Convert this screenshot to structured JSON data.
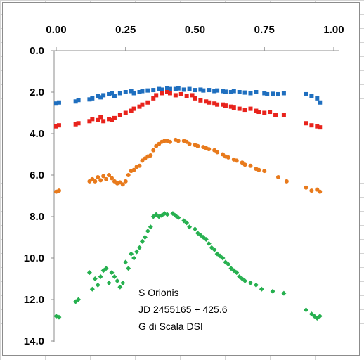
{
  "chart_data": {
    "type": "scatter",
    "xlim": [
      0,
      1
    ],
    "ylim": [
      0,
      14
    ],
    "y_reversed": true,
    "x_axis_position": "top",
    "grid": "none",
    "legend": "none",
    "x_ticks": [
      "0.00",
      "0.25",
      "0.50",
      "0.75",
      "1.00"
    ],
    "y_ticks": [
      "0.0",
      "2.0",
      "4.0",
      "6.0",
      "8.0",
      "10.0",
      "12.0",
      "14.0"
    ],
    "annotation": [
      "S Orionis",
      "JD 2455165 + 425.6",
      "G di Scala DSI"
    ],
    "series": [
      {
        "color": "#1f6fbf",
        "marker": "square",
        "points": [
          [
            0.0,
            2.55
          ],
          [
            0.01,
            2.5
          ],
          [
            0.07,
            2.45
          ],
          [
            0.08,
            2.38
          ],
          [
            0.12,
            2.35
          ],
          [
            0.13,
            2.3
          ],
          [
            0.15,
            2.2
          ],
          [
            0.16,
            2.25
          ],
          [
            0.17,
            2.15
          ],
          [
            0.19,
            2.1
          ],
          [
            0.2,
            2.05
          ],
          [
            0.21,
            2.2
          ],
          [
            0.23,
            2.05
          ],
          [
            0.25,
            2.0
          ],
          [
            0.27,
            1.95
          ],
          [
            0.28,
            2.05
          ],
          [
            0.3,
            2.0
          ],
          [
            0.31,
            1.95
          ],
          [
            0.33,
            1.92
          ],
          [
            0.35,
            1.9
          ],
          [
            0.37,
            1.85
          ],
          [
            0.38,
            1.88
          ],
          [
            0.4,
            1.82
          ],
          [
            0.41,
            1.85
          ],
          [
            0.43,
            1.85
          ],
          [
            0.44,
            1.82
          ],
          [
            0.46,
            1.88
          ],
          [
            0.48,
            1.85
          ],
          [
            0.5,
            1.9
          ],
          [
            0.52,
            1.88
          ],
          [
            0.53,
            1.92
          ],
          [
            0.55,
            1.9
          ],
          [
            0.57,
            1.95
          ],
          [
            0.58,
            1.92
          ],
          [
            0.6,
            1.95
          ],
          [
            0.61,
            1.98
          ],
          [
            0.63,
            2.0
          ],
          [
            0.64,
            1.95
          ],
          [
            0.66,
            2.0
          ],
          [
            0.68,
            2.02
          ],
          [
            0.7,
            2.05
          ],
          [
            0.72,
            2.0
          ],
          [
            0.75,
            2.05
          ],
          [
            0.76,
            2.1
          ],
          [
            0.78,
            2.08
          ],
          [
            0.8,
            2.1
          ],
          [
            0.82,
            2.05
          ],
          [
            0.9,
            2.1
          ],
          [
            0.92,
            2.2
          ],
          [
            0.94,
            2.3
          ],
          [
            0.95,
            2.5
          ]
        ]
      },
      {
        "color": "#e8231c",
        "marker": "square",
        "points": [
          [
            0.0,
            3.65
          ],
          [
            0.01,
            3.6
          ],
          [
            0.07,
            3.55
          ],
          [
            0.08,
            3.5
          ],
          [
            0.12,
            3.4
          ],
          [
            0.13,
            3.3
          ],
          [
            0.15,
            3.35
          ],
          [
            0.16,
            3.2
          ],
          [
            0.17,
            3.4
          ],
          [
            0.19,
            3.3
          ],
          [
            0.2,
            3.35
          ],
          [
            0.21,
            3.25
          ],
          [
            0.23,
            3.1
          ],
          [
            0.25,
            3.0
          ],
          [
            0.27,
            2.9
          ],
          [
            0.28,
            2.8
          ],
          [
            0.3,
            2.7
          ],
          [
            0.31,
            2.6
          ],
          [
            0.33,
            2.5
          ],
          [
            0.35,
            2.3
          ],
          [
            0.36,
            2.15
          ],
          [
            0.38,
            2.05
          ],
          [
            0.4,
            2.0
          ],
          [
            0.41,
            2.05
          ],
          [
            0.43,
            2.15
          ],
          [
            0.45,
            2.1
          ],
          [
            0.47,
            2.2
          ],
          [
            0.49,
            2.15
          ],
          [
            0.5,
            2.3
          ],
          [
            0.52,
            2.4
          ],
          [
            0.54,
            2.45
          ],
          [
            0.55,
            2.5
          ],
          [
            0.57,
            2.55
          ],
          [
            0.58,
            2.6
          ],
          [
            0.6,
            2.6
          ],
          [
            0.61,
            2.65
          ],
          [
            0.63,
            2.7
          ],
          [
            0.64,
            2.75
          ],
          [
            0.66,
            2.8
          ],
          [
            0.68,
            2.85
          ],
          [
            0.7,
            2.8
          ],
          [
            0.72,
            2.9
          ],
          [
            0.73,
            2.95
          ],
          [
            0.75,
            3.0
          ],
          [
            0.77,
            2.95
          ],
          [
            0.79,
            3.1
          ],
          [
            0.82,
            3.1
          ],
          [
            0.9,
            3.5
          ],
          [
            0.92,
            3.6
          ],
          [
            0.94,
            3.65
          ],
          [
            0.95,
            3.7
          ]
        ]
      },
      {
        "color": "#e87a1c",
        "marker": "circle",
        "points": [
          [
            0.0,
            6.8
          ],
          [
            0.01,
            6.75
          ],
          [
            0.12,
            6.3
          ],
          [
            0.13,
            6.2
          ],
          [
            0.14,
            6.3
          ],
          [
            0.15,
            6.1
          ],
          [
            0.16,
            6.25
          ],
          [
            0.17,
            6.05
          ],
          [
            0.18,
            6.2
          ],
          [
            0.19,
            6.0
          ],
          [
            0.2,
            6.15
          ],
          [
            0.21,
            6.3
          ],
          [
            0.22,
            6.4
          ],
          [
            0.23,
            6.35
          ],
          [
            0.24,
            6.45
          ],
          [
            0.25,
            6.3
          ],
          [
            0.26,
            6.0
          ],
          [
            0.27,
            5.8
          ],
          [
            0.28,
            5.75
          ],
          [
            0.29,
            5.6
          ],
          [
            0.3,
            5.55
          ],
          [
            0.31,
            5.3
          ],
          [
            0.32,
            5.2
          ],
          [
            0.33,
            5.1
          ],
          [
            0.34,
            5.05
          ],
          [
            0.35,
            4.8
          ],
          [
            0.36,
            4.6
          ],
          [
            0.37,
            4.5
          ],
          [
            0.38,
            4.4
          ],
          [
            0.39,
            4.35
          ],
          [
            0.4,
            4.35
          ],
          [
            0.41,
            4.4
          ],
          [
            0.43,
            4.3
          ],
          [
            0.44,
            4.35
          ],
          [
            0.46,
            4.35
          ],
          [
            0.47,
            4.4
          ],
          [
            0.48,
            4.5
          ],
          [
            0.5,
            4.55
          ],
          [
            0.51,
            4.6
          ],
          [
            0.53,
            4.65
          ],
          [
            0.54,
            4.7
          ],
          [
            0.55,
            4.75
          ],
          [
            0.57,
            4.8
          ],
          [
            0.58,
            4.9
          ],
          [
            0.6,
            5.0
          ],
          [
            0.61,
            5.1
          ],
          [
            0.62,
            5.15
          ],
          [
            0.64,
            5.25
          ],
          [
            0.65,
            5.3
          ],
          [
            0.67,
            5.4
          ],
          [
            0.68,
            5.5
          ],
          [
            0.7,
            5.55
          ],
          [
            0.72,
            5.7
          ],
          [
            0.73,
            5.75
          ],
          [
            0.75,
            5.8
          ],
          [
            0.8,
            6.1
          ],
          [
            0.83,
            6.3
          ],
          [
            0.9,
            6.6
          ],
          [
            0.92,
            6.75
          ],
          [
            0.94,
            6.7
          ],
          [
            0.95,
            6.8
          ]
        ]
      },
      {
        "color": "#26b04f",
        "marker": "diamond",
        "points": [
          [
            0.0,
            12.8
          ],
          [
            0.01,
            12.85
          ],
          [
            0.07,
            12.1
          ],
          [
            0.08,
            12.0
          ],
          [
            0.12,
            10.7
          ],
          [
            0.13,
            11.5
          ],
          [
            0.14,
            11.0
          ],
          [
            0.15,
            11.3
          ],
          [
            0.16,
            10.9
          ],
          [
            0.17,
            10.6
          ],
          [
            0.18,
            10.5
          ],
          [
            0.19,
            11.2
          ],
          [
            0.2,
            10.7
          ],
          [
            0.21,
            10.9
          ],
          [
            0.22,
            11.1
          ],
          [
            0.23,
            11.4
          ],
          [
            0.24,
            11.2
          ],
          [
            0.25,
            10.2
          ],
          [
            0.26,
            10.5
          ],
          [
            0.27,
            9.8
          ],
          [
            0.28,
            10.0
          ],
          [
            0.29,
            9.7
          ],
          [
            0.3,
            9.5
          ],
          [
            0.31,
            9.2
          ],
          [
            0.32,
            9.0
          ],
          [
            0.33,
            8.7
          ],
          [
            0.34,
            8.5
          ],
          [
            0.35,
            8.0
          ],
          [
            0.36,
            7.9
          ],
          [
            0.37,
            8.0
          ],
          [
            0.38,
            7.95
          ],
          [
            0.39,
            7.85
          ],
          [
            0.4,
            7.9
          ],
          [
            0.42,
            7.85
          ],
          [
            0.43,
            7.95
          ],
          [
            0.44,
            8.05
          ],
          [
            0.46,
            8.2
          ],
          [
            0.47,
            8.3
          ],
          [
            0.48,
            8.5
          ],
          [
            0.5,
            8.6
          ],
          [
            0.51,
            8.8
          ],
          [
            0.52,
            8.9
          ],
          [
            0.53,
            9.0
          ],
          [
            0.54,
            9.1
          ],
          [
            0.55,
            9.3
          ],
          [
            0.56,
            9.5
          ],
          [
            0.57,
            9.6
          ],
          [
            0.58,
            9.8
          ],
          [
            0.59,
            9.9
          ],
          [
            0.6,
            10.0
          ],
          [
            0.61,
            10.2
          ],
          [
            0.62,
            10.3
          ],
          [
            0.63,
            10.5
          ],
          [
            0.64,
            10.6
          ],
          [
            0.65,
            10.7
          ],
          [
            0.66,
            10.9
          ],
          [
            0.67,
            11.0
          ],
          [
            0.68,
            11.1
          ],
          [
            0.7,
            11.2
          ],
          [
            0.72,
            11.3
          ],
          [
            0.74,
            11.5
          ],
          [
            0.78,
            11.6
          ],
          [
            0.82,
            11.7
          ],
          [
            0.9,
            12.5
          ],
          [
            0.92,
            12.7
          ],
          [
            0.93,
            12.8
          ],
          [
            0.94,
            12.9
          ],
          [
            0.95,
            12.8
          ]
        ]
      }
    ]
  }
}
